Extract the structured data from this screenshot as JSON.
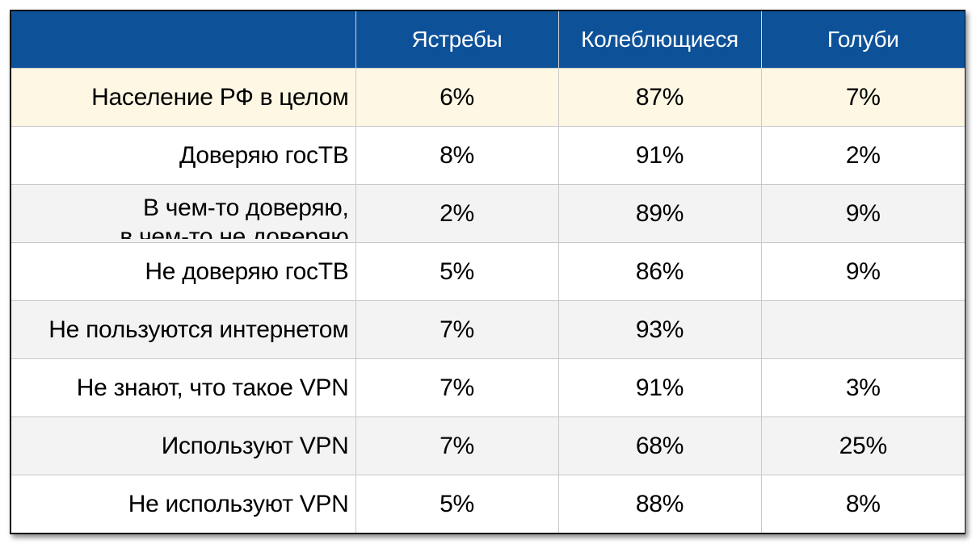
{
  "chart_data": {
    "type": "table",
    "columns": [
      "",
      "Ястребы",
      "Колеблющиеся",
      "Голуби"
    ],
    "rows": [
      {
        "label": "Население РФ в целом",
        "values": [
          "6%",
          "87%",
          "7%"
        ]
      },
      {
        "label": "Доверяю госТВ",
        "values": [
          "8%",
          "91%",
          "2%"
        ]
      },
      {
        "label_lines": [
          "В чем-то доверяю,",
          "в чем-то не доверяю"
        ],
        "values": [
          "2%",
          "89%",
          "9%"
        ]
      },
      {
        "label": "Не доверяю госТВ",
        "values": [
          "5%",
          "86%",
          "9%"
        ]
      },
      {
        "label": "Не пользуются интернетом",
        "values": [
          "7%",
          "93%",
          ""
        ]
      },
      {
        "label": "Не знают, что такое VPN",
        "values": [
          "7%",
          "91%",
          "3%"
        ]
      },
      {
        "label": "Используют VPN",
        "values": [
          "7%",
          "68%",
          "25%"
        ]
      },
      {
        "label": "Не используют VPN",
        "values": [
          "5%",
          "88%",
          "8%"
        ]
      }
    ]
  },
  "colors": {
    "header_bg": "#0d5198",
    "header_text": "#ffffff",
    "highlight_row_bg": "#fdf7e3",
    "stripe_bg": "#f3f3f3"
  }
}
